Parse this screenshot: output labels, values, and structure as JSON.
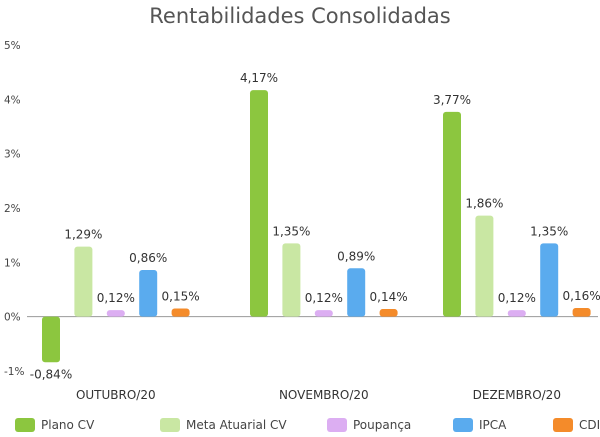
{
  "chart_data": {
    "type": "bar",
    "title": "Rentabilidades Consolidadas",
    "categories": [
      "OUTUBRO/20",
      "NOVEMBRO/20",
      "DEZEMBRO/20"
    ],
    "series": [
      {
        "name": "Plano CV",
        "values": [
          -0.84,
          4.17,
          3.77
        ],
        "labels": [
          "-0,84%",
          "4,17%",
          "3,77%"
        ],
        "color": "#8cc63f"
      },
      {
        "name": "Meta Atuarial CV",
        "values": [
          1.29,
          1.35,
          1.86
        ],
        "labels": [
          "1,29%",
          "1,35%",
          "1,86%"
        ],
        "color": "#c9e7a3"
      },
      {
        "name": "Poupança",
        "values": [
          0.12,
          0.12,
          0.12
        ],
        "labels": [
          "0,12%",
          "0,12%",
          "0,12%"
        ],
        "color": "#dcaef2"
      },
      {
        "name": "IPCA",
        "values": [
          0.86,
          0.89,
          1.35
        ],
        "labels": [
          "0,86%",
          "0,89%",
          "1,35%"
        ],
        "color": "#5aabee"
      },
      {
        "name": "CDI",
        "values": [
          0.15,
          0.14,
          0.16
        ],
        "labels": [
          "0,15%",
          "0,14%",
          "0,16%"
        ],
        "color": "#f48b2a"
      }
    ],
    "yticks": [
      {
        "value": 5,
        "label": "5%"
      },
      {
        "value": 4,
        "label": "4%"
      },
      {
        "value": 3,
        "label": "3%"
      },
      {
        "value": 2,
        "label": "2%"
      },
      {
        "value": 1,
        "label": "1%"
      },
      {
        "value": 0,
        "label": "0%"
      },
      {
        "value": -1,
        "label": "-1%"
      }
    ],
    "ylim": [
      -1,
      5
    ],
    "grid": false,
    "legend_position": "bottom"
  }
}
